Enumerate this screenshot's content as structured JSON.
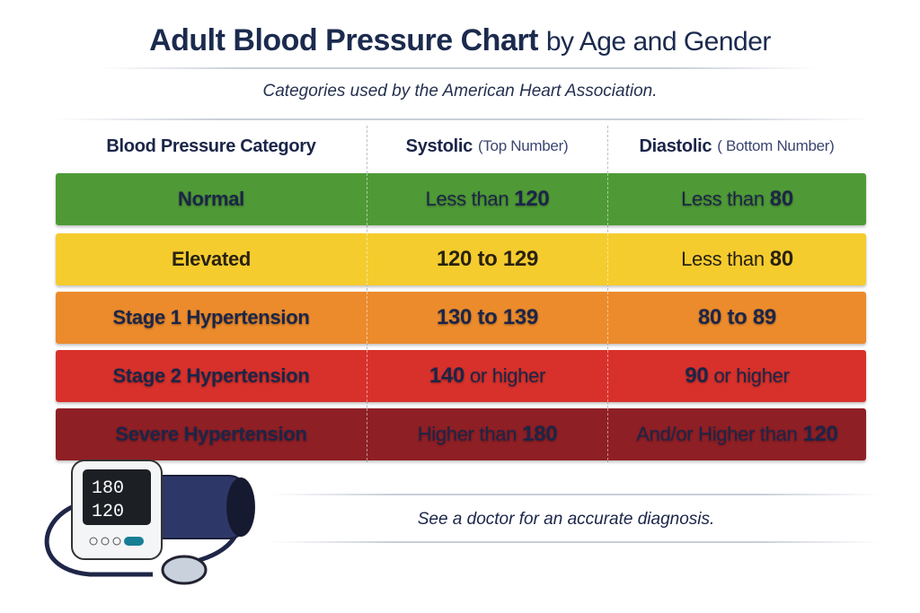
{
  "title": {
    "main": "Adult Blood Pressure Chart",
    "rest": "by Age and Gender"
  },
  "subtitle": "Categories used by the American Heart Association.",
  "headers": [
    {
      "label": "Blood Pressure Category",
      "paren": ""
    },
    {
      "label": "Systolic",
      "paren": "(Top Number)"
    },
    {
      "label": "Diastolic",
      "paren": "( Bottom Number)"
    }
  ],
  "rows": [
    {
      "category": "Normal",
      "systolic": {
        "text": "Less than",
        "bold": "120"
      },
      "diastolic": {
        "text": "Less than",
        "bold": "80"
      },
      "color": "#4f9a36"
    },
    {
      "category": "Elevated",
      "systolic": {
        "text": "",
        "bold": "120 to 129"
      },
      "diastolic": {
        "text": "Less than",
        "bold": "80"
      },
      "color": "#f5cc2e"
    },
    {
      "category": "Stage 1 Hypertension",
      "systolic": {
        "text": "",
        "bold": "130 to 139"
      },
      "diastolic": {
        "text": "",
        "bold": "80 to 89"
      },
      "color": "#ec8b2c"
    },
    {
      "category": "Stage 2 Hypertension",
      "systolic": {
        "text": "",
        "bold": "140",
        "after": "or higher"
      },
      "diastolic": {
        "text": "",
        "bold": "90",
        "after": "or higher"
      },
      "color": "#d8312b"
    },
    {
      "category": "Severe Hypertension",
      "systolic": {
        "text": "Higher than",
        "bold": "180"
      },
      "diastolic": {
        "text": "And/or Higher than",
        "bold": "120"
      },
      "color": "#8e1f25"
    }
  ],
  "monitor": {
    "systolic": "180",
    "diastolic": "120"
  },
  "footer": "See a doctor for an accurate diagnosis."
}
